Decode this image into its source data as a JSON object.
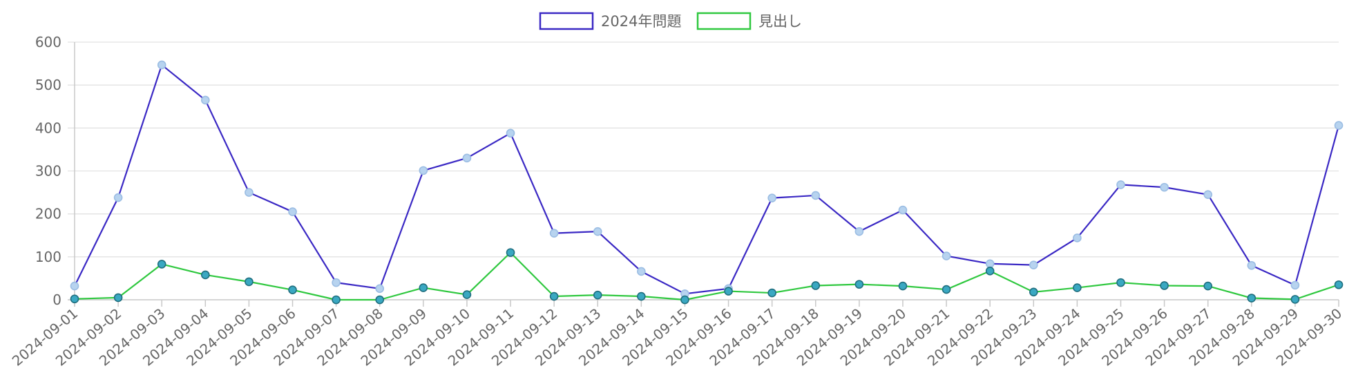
{
  "chart_data": {
    "type": "line",
    "title": "",
    "xlabel": "",
    "ylabel": "",
    "ylim": [
      0,
      600
    ],
    "yticks": [
      0,
      100,
      200,
      300,
      400,
      500,
      600
    ],
    "grid": true,
    "legend_position": "top-center",
    "categories": [
      "2024-09-01",
      "2024-09-02",
      "2024-09-03",
      "2024-09-04",
      "2024-09-05",
      "2024-09-06",
      "2024-09-07",
      "2024-09-08",
      "2024-09-09",
      "2024-09-10",
      "2024-09-11",
      "2024-09-12",
      "2024-09-13",
      "2024-09-14",
      "2024-09-15",
      "2024-09-16",
      "2024-09-17",
      "2024-09-18",
      "2024-09-19",
      "2024-09-20",
      "2024-09-21",
      "2024-09-22",
      "2024-09-23",
      "2024-09-24",
      "2024-09-25",
      "2024-09-26",
      "2024-09-27",
      "2024-09-28",
      "2024-09-29",
      "2024-09-30"
    ],
    "series": [
      {
        "name": "2024年問題",
        "color": "#3a28c4",
        "point_color": "#b7d3ef",
        "values": [
          32,
          238,
          547,
          465,
          250,
          205,
          40,
          26,
          301,
          330,
          388,
          155,
          159,
          66,
          14,
          26,
          237,
          243,
          159,
          209,
          102,
          84,
          81,
          144,
          268,
          262,
          245,
          80,
          34,
          406
        ]
      },
      {
        "name": "見出し",
        "color": "#2fc83f",
        "point_color": "#3aa8c2",
        "values": [
          2,
          5,
          83,
          58,
          42,
          23,
          0,
          0,
          28,
          12,
          110,
          8,
          11,
          8,
          0,
          20,
          16,
          33,
          36,
          32,
          24,
          67,
          18,
          28,
          40,
          33,
          32,
          4,
          1,
          35
        ]
      }
    ]
  }
}
